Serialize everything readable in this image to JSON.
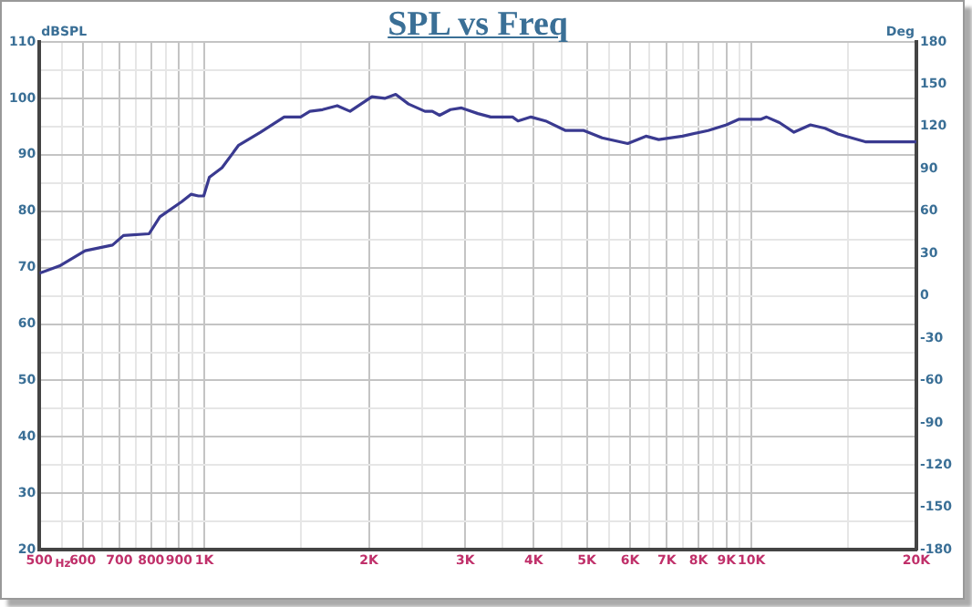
{
  "chart_data": {
    "type": "line",
    "title": "SPL vs Freq",
    "xlabel": "Hz",
    "ylabel": "dBSPL",
    "y2label": "Deg",
    "log": "x",
    "grid": true,
    "marker": "none",
    "line_style": "solid",
    "x": [
      500,
      544,
      606,
      680,
      712,
      793,
      830,
      910,
      946,
      976,
      998,
      1022,
      1078,
      1156,
      1267,
      1400,
      1500,
      1560,
      1645,
      1750,
      1847,
      2025,
      2137,
      2238,
      2362,
      2531,
      2611,
      2692,
      2818,
      2951,
      3163,
      3339,
      3659,
      3744,
      3953,
      4203,
      4574,
      4939,
      5333,
      5940,
      6413,
      6767,
      7479,
      8329,
      8995,
      9489,
      10409,
      10652,
      11242,
      11952,
      12809,
      13621,
      14374,
      16134,
      18240,
      20000
    ],
    "series": [
      {
        "color": "#3a3a90",
        "values": [
          69,
          70.3,
          73,
          74,
          75.7,
          76,
          79,
          81.7,
          83,
          82.7,
          82.7,
          86,
          87.7,
          91.7,
          94,
          96.7,
          96.7,
          97.7,
          98,
          98.7,
          97.7,
          100.3,
          100,
          100.7,
          99,
          97.7,
          97.7,
          97,
          98,
          98.3,
          97.3,
          96.7,
          96.7,
          96,
          96.7,
          96,
          94.3,
          94.3,
          93,
          92,
          93.3,
          92.7,
          93.3,
          94.3,
          95.3,
          96.3,
          96.3,
          96.7,
          95.7,
          94,
          95.3,
          94.7,
          93.7,
          92.3,
          92.3,
          92.3
        ]
      }
    ],
    "xlim": [
      500,
      20000
    ],
    "xticks": [
      500,
      {
        "value": 550,
        "label": null
      },
      600,
      {
        "value": 650,
        "label": null
      },
      700,
      {
        "value": 750,
        "label": null
      },
      800,
      {
        "value": 850,
        "label": null
      },
      900,
      {
        "value": 950,
        "label": null
      },
      {
        "value": 1000,
        "label": "1K"
      },
      {
        "value": 1500,
        "label": null
      },
      {
        "value": 2000,
        "label": "2K"
      },
      {
        "value": 2500,
        "label": null
      },
      {
        "value": 3000,
        "label": "3K"
      },
      {
        "value": 3500,
        "label": null
      },
      {
        "value": 4000,
        "label": "4K"
      },
      {
        "value": 4500,
        "label": null
      },
      {
        "value": 5000,
        "label": "5K"
      },
      {
        "value": 5500,
        "label": null
      },
      {
        "value": 6000,
        "label": "6K"
      },
      {
        "value": 6500,
        "label": null
      },
      {
        "value": 7000,
        "label": "7K"
      },
      {
        "value": 7500,
        "label": null
      },
      {
        "value": 8000,
        "label": "8K"
      },
      {
        "value": 8500,
        "label": null
      },
      {
        "value": 9000,
        "label": "9K"
      },
      {
        "value": 9500,
        "label": null
      },
      {
        "value": 10000,
        "label": "10K"
      },
      {
        "value": 15000,
        "label": null
      },
      {
        "value": 20000,
        "label": "20K"
      }
    ],
    "ylim": [
      20,
      110
    ],
    "yticks": [
      20,
      {
        "value": 25,
        "label": null
      },
      30,
      {
        "value": 35,
        "label": null
      },
      40,
      {
        "value": 45,
        "label": null
      },
      50,
      {
        "value": 55,
        "label": null
      },
      60,
      {
        "value": 65,
        "label": null
      },
      70,
      {
        "value": 75,
        "label": null
      },
      80,
      {
        "value": 85,
        "label": null
      },
      90,
      {
        "value": 95,
        "label": null
      },
      100,
      {
        "value": 105,
        "label": null
      },
      110
    ],
    "y2lim": [
      -180,
      180
    ],
    "y2ticks": [
      -180,
      -150,
      -120,
      -90,
      -60,
      -30,
      0,
      30,
      60,
      90,
      120,
      150,
      180
    ]
  }
}
